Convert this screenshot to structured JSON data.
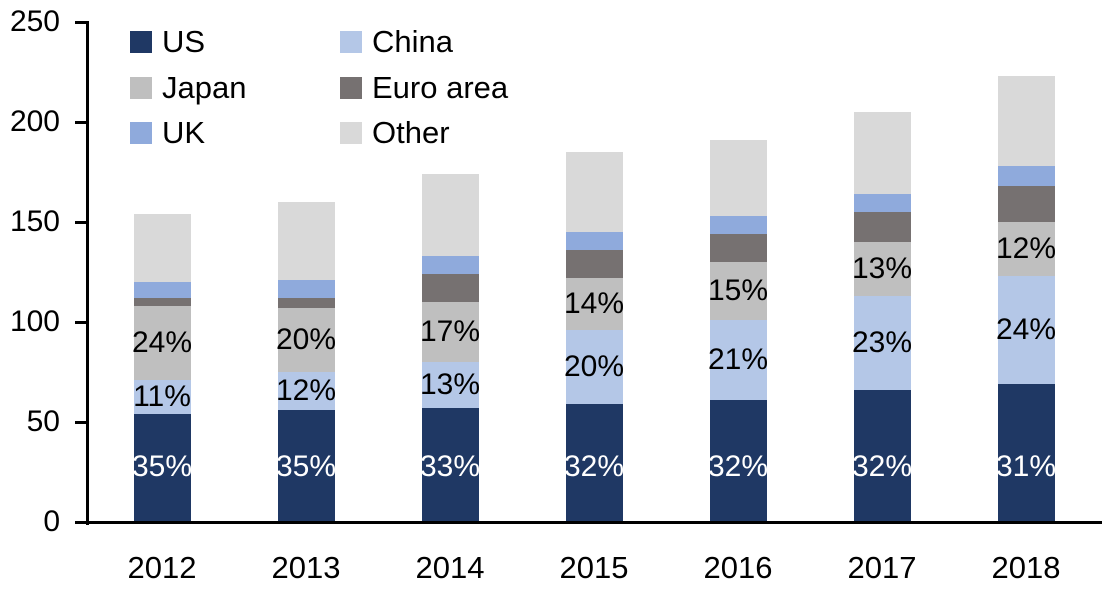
{
  "chart_data": {
    "type": "bar",
    "stacked": true,
    "title": "",
    "xlabel": "",
    "ylabel": "",
    "categories": [
      "2012",
      "2013",
      "2014",
      "2015",
      "2016",
      "2017",
      "2018"
    ],
    "series": [
      {
        "name": "US",
        "color": "#1f3864",
        "values": [
          54,
          56,
          57,
          59,
          61,
          66,
          69
        ],
        "percent_labels": [
          "35%",
          "35%",
          "33%",
          "32%",
          "32%",
          "32%",
          "31%"
        ],
        "label_color": "#ffffff",
        "label_placement": "inside-base"
      },
      {
        "name": "China",
        "color": "#b4c7e7",
        "values": [
          17,
          19,
          23,
          37,
          40,
          47,
          54
        ],
        "percent_labels": [
          "11%",
          "12%",
          "13%",
          "20%",
          "21%",
          "23%",
          "24%"
        ],
        "label_color": "#000000",
        "label_placement": "center"
      },
      {
        "name": "Japan",
        "color": "#bfbfbf",
        "values": [
          37,
          32,
          30,
          26,
          29,
          27,
          27
        ],
        "percent_labels": [
          "24%",
          "20%",
          "17%",
          "14%",
          "15%",
          "13%",
          "12%"
        ],
        "label_color": "#000000",
        "label_placement": "center"
      },
      {
        "name": "Euro area",
        "color": "#767171",
        "values": [
          4,
          5,
          14,
          14,
          14,
          15,
          18
        ],
        "percent_labels": null
      },
      {
        "name": "UK",
        "color": "#8faadc",
        "values": [
          8,
          9,
          9,
          9,
          9,
          9,
          10
        ],
        "percent_labels": null
      },
      {
        "name": "Other",
        "color": "#d9d9d9",
        "values": [
          34,
          39,
          41,
          40,
          38,
          41,
          45
        ],
        "percent_labels": null
      }
    ],
    "totals": [
      154,
      160,
      174,
      185,
      191,
      205,
      223
    ],
    "ylim": [
      0,
      250
    ],
    "yticks": [
      0,
      50,
      100,
      150,
      200,
      250
    ],
    "grid": false,
    "axis_color": "#000000",
    "background": "#ffffff",
    "legend_position": "top-left",
    "legend_columns": [
      [
        "US",
        "Japan",
        "UK"
      ],
      [
        "China",
        "Euro area",
        "Other"
      ]
    ]
  }
}
